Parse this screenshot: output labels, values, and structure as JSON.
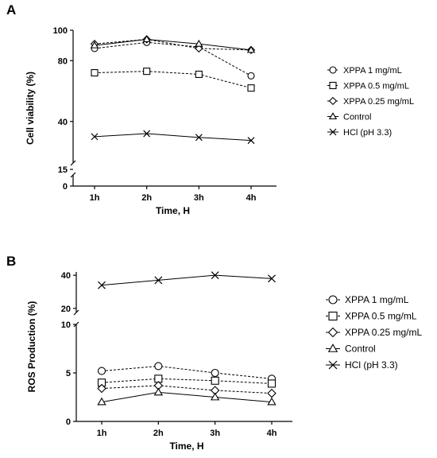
{
  "figure": {
    "label_a": "A",
    "label_b": "B"
  },
  "chart_data": [
    {
      "panel": "A",
      "type": "line",
      "xlabel": "Time, H",
      "ylabel": "Cell viability (%)",
      "categories": [
        "1h",
        "2h",
        "3h",
        "4h"
      ],
      "y_axis_break": true,
      "y_ticks_lower": [
        0,
        15
      ],
      "y_ticks_upper": [
        40,
        80,
        100
      ],
      "ylim_lower": [
        0,
        15
      ],
      "ylim_upper": [
        20,
        100
      ],
      "grid": false,
      "legend_position": "right",
      "series": [
        {
          "name": "XPPA 1 mg/mL",
          "marker": "circle",
          "line": "dashed",
          "values": [
            88,
            92,
            89,
            70
          ]
        },
        {
          "name": "XPPA 0.5 mg/mL",
          "marker": "square",
          "line": "dashed",
          "values": [
            72,
            73,
            71,
            62
          ]
        },
        {
          "name": "XPPA 0.25 mg/mL",
          "marker": "diamond",
          "line": "dashed",
          "values": [
            91,
            94,
            88,
            87
          ]
        },
        {
          "name": "Control",
          "marker": "triangle",
          "line": "solid",
          "values": [
            90,
            94,
            91,
            87
          ]
        },
        {
          "name": "HCl (pH 3.3)",
          "marker": "x",
          "line": "solid",
          "values": [
            30,
            32,
            29.5,
            27.5
          ]
        }
      ]
    },
    {
      "panel": "B",
      "type": "line",
      "xlabel": "Time, H",
      "ylabel": "ROS Production (%)",
      "categories": [
        "1h",
        "2h",
        "3h",
        "4h"
      ],
      "y_axis_break": true,
      "y_ticks_lower": [
        0,
        5,
        10
      ],
      "y_ticks_upper": [
        20,
        40
      ],
      "ylim_lower": [
        0,
        10
      ],
      "ylim_upper": [
        18,
        42
      ],
      "grid": false,
      "legend_position": "right",
      "series": [
        {
          "name": "XPPA 1 mg/mL",
          "marker": "circle",
          "line": "dashed",
          "values": [
            5.2,
            5.7,
            5.0,
            4.4
          ]
        },
        {
          "name": "XPPA 0.5 mg/mL",
          "marker": "square",
          "line": "dashed",
          "values": [
            4.0,
            4.4,
            4.2,
            3.9
          ]
        },
        {
          "name": "XPPA 0.25 mg/mL",
          "marker": "diamond",
          "line": "dashed",
          "values": [
            3.4,
            3.7,
            3.2,
            2.9
          ]
        },
        {
          "name": "Control",
          "marker": "triangle",
          "line": "solid",
          "values": [
            2.0,
            3.0,
            2.5,
            2.0
          ]
        },
        {
          "name": "HCl (pH 3.3)",
          "marker": "x",
          "line": "solid",
          "values": [
            34,
            37,
            40,
            38
          ]
        }
      ]
    }
  ]
}
